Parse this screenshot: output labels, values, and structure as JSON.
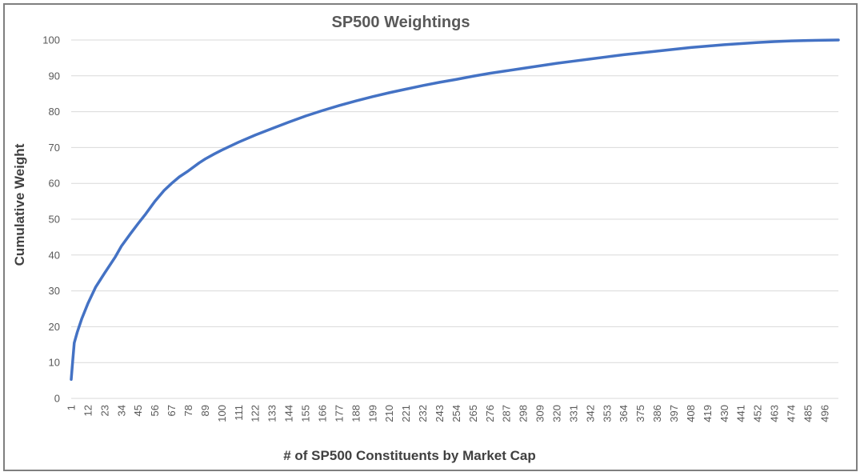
{
  "chart_data": {
    "type": "line",
    "title": "SP500 Weightings",
    "xlabel": "# of SP500 Constituents by Market Cap",
    "ylabel": "Cumulative Weight",
    "ylim": [
      0,
      100
    ],
    "y_ticks": [
      "0",
      "10",
      "20",
      "30",
      "40",
      "50",
      "60",
      "70",
      "80",
      "90",
      "100"
    ],
    "x_tick_labels": [
      "1",
      "12",
      "23",
      "34",
      "45",
      "56",
      "67",
      "78",
      "89",
      "100",
      "111",
      "122",
      "133",
      "144",
      "155",
      "166",
      "177",
      "188",
      "199",
      "210",
      "221",
      "232",
      "243",
      "254",
      "265",
      "276",
      "287",
      "298",
      "309",
      "320",
      "331",
      "342",
      "353",
      "364",
      "375",
      "386",
      "397",
      "408",
      "419",
      "430",
      "441",
      "452",
      "463",
      "474",
      "485",
      "496"
    ],
    "x_range": [
      1,
      505
    ],
    "grid": true,
    "legend": "none",
    "line_color": "#4472c4",
    "series": [
      {
        "x": [
          1,
          2,
          3,
          5,
          8,
          12,
          17,
          23,
          30,
          34,
          40,
          45,
          50,
          56,
          62,
          67,
          72,
          78,
          85,
          89,
          95,
          100,
          111,
          122,
          133,
          144,
          155,
          166,
          177,
          188,
          199,
          210,
          221,
          232,
          243,
          254,
          265,
          276,
          287,
          298,
          309,
          320,
          331,
          342,
          353,
          364,
          375,
          386,
          397,
          408,
          419,
          430,
          441,
          452,
          463,
          474,
          485,
          496,
          505
        ],
        "values": [
          5.3,
          10.5,
          15.5,
          18.5,
          22.3,
          26.5,
          31,
          35,
          39.5,
          42.5,
          46,
          48.8,
          51.5,
          55,
          58,
          60,
          61.8,
          63.5,
          65.7,
          66.8,
          68.2,
          69.3,
          71.5,
          73.5,
          75.3,
          77.1,
          78.8,
          80.3,
          81.7,
          83,
          84.2,
          85.3,
          86.3,
          87.3,
          88.2,
          89,
          89.9,
          90.7,
          91.4,
          92.1,
          92.8,
          93.5,
          94.1,
          94.7,
          95.3,
          95.9,
          96.4,
          96.9,
          97.4,
          97.9,
          98.3,
          98.7,
          99,
          99.3,
          99.55,
          99.75,
          99.85,
          99.95,
          100
        ]
      }
    ]
  }
}
